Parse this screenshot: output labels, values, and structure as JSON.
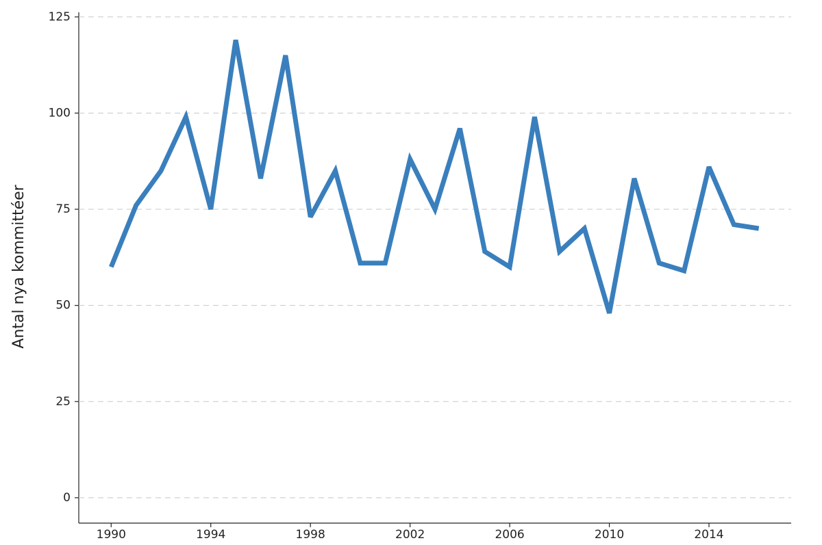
{
  "chart_data": {
    "type": "line",
    "y_label": "Antal nya kommittéer",
    "x": [
      1990,
      1991,
      1992,
      1993,
      1994,
      1995,
      1996,
      1997,
      1998,
      1999,
      2000,
      2001,
      2002,
      2003,
      2004,
      2005,
      2006,
      2007,
      2008,
      2009,
      2010,
      2011,
      2012,
      2013,
      2014,
      2015,
      2016
    ],
    "series": [
      {
        "color": "#3a7fbd",
        "values": [
          60,
          76,
          85,
          99,
          75,
          119,
          83,
          115,
          73,
          85,
          61,
          61,
          88,
          75,
          96,
          64,
          60,
          99,
          64,
          70,
          48,
          83,
          61,
          59,
          86,
          71,
          70
        ]
      }
    ],
    "xlim": [
      1988.7,
      2017.3
    ],
    "xticks": [
      1990,
      1994,
      1998,
      2002,
      2006,
      2010,
      2014
    ],
    "ylim": [
      -6.6,
      126.2
    ],
    "yticks": [
      0,
      25,
      50,
      75,
      100,
      125
    ],
    "grid": true
  }
}
